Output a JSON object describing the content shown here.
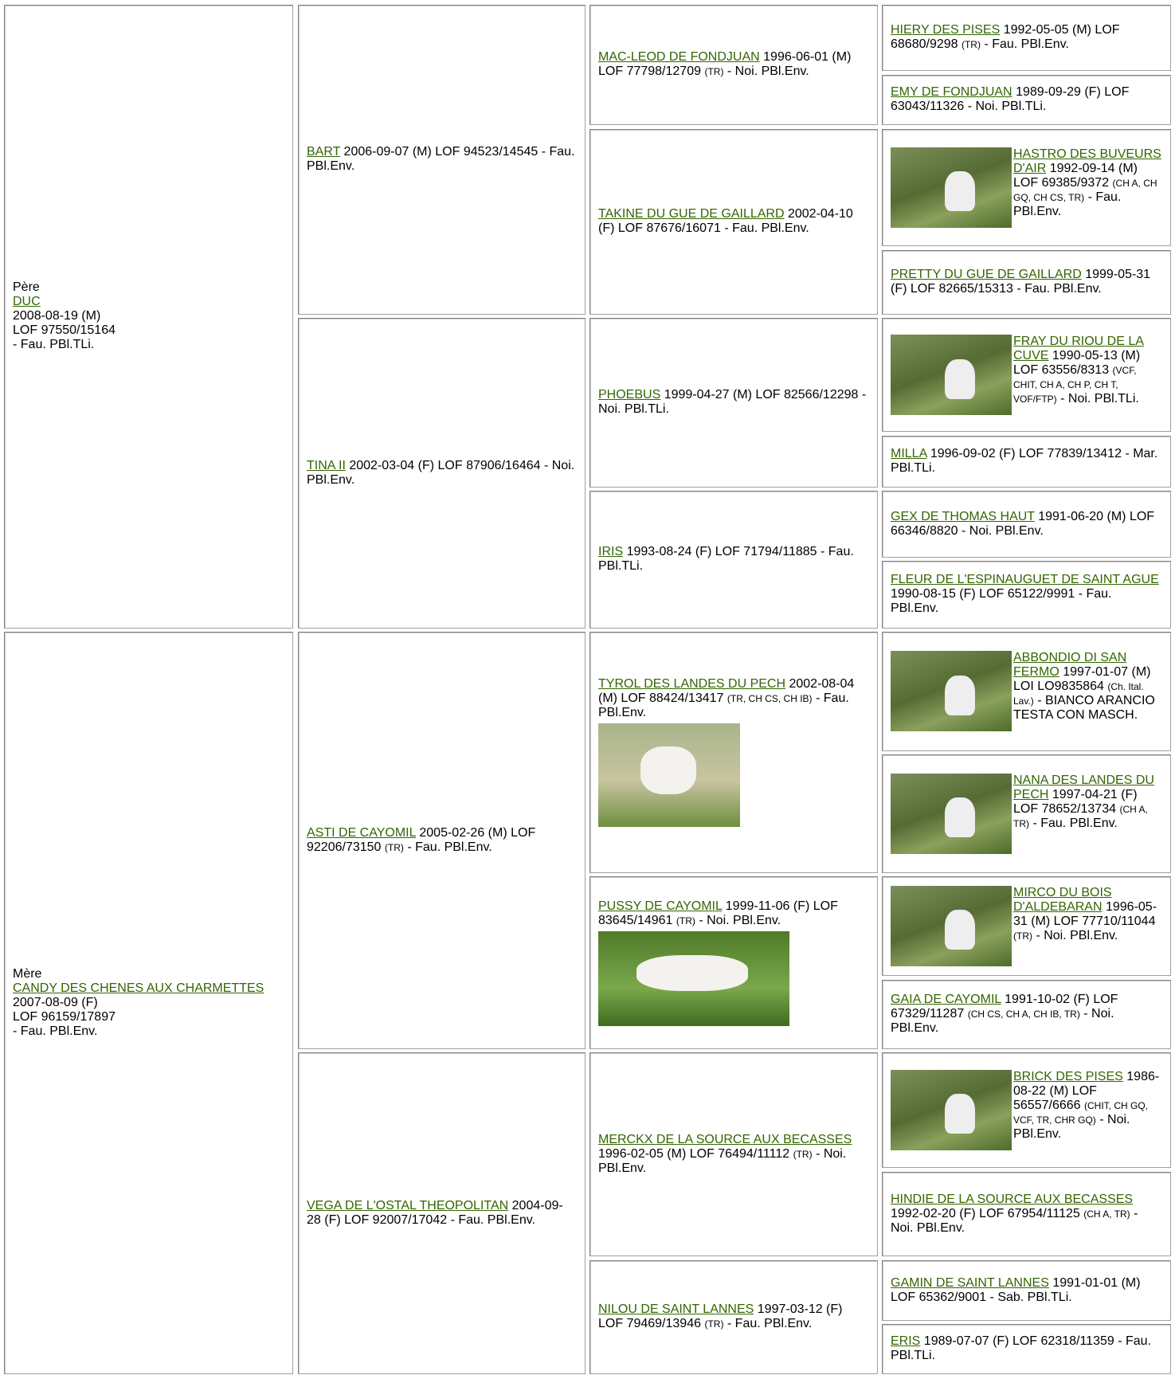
{
  "gen1": [
    {
      "label": "Père",
      "name": "DUC",
      "lines": [
        "2008-08-19 (M)",
        "LOF 97550/15164",
        "- Fau. PBl.TLi."
      ]
    },
    {
      "label": "Mère",
      "name": "CANDY DES CHENES AUX CHARMETTES",
      "lines": [
        "2007-08-09 (F)",
        "LOF 96159/17897",
        "- Fau. PBl.Env."
      ]
    }
  ],
  "gen2": [
    {
      "name": "BART",
      "info": "2006-09-07 (M) LOF 94523/14545",
      "rest": "- Fau. PBl.Env."
    },
    {
      "name": "TINA II",
      "info": "2002-03-04 (F) LOF 87906/16464",
      "rest": "- Noi. PBl.Env."
    },
    {
      "name": "ASTI DE CAYOMIL",
      "info": "2005-02-26 (M) LOF 92206/73150",
      "titles": "(TR)",
      "rest": "- Fau. PBl.Env."
    },
    {
      "name": "VEGA DE L'OSTAL THEOPOLITAN",
      "info": "2004-09-28 (F) LOF 92007/17042",
      "rest": "- Fau. PBl.Env."
    }
  ],
  "gen3": [
    {
      "name": "MAC-LEOD DE FONDJUAN",
      "info": "1996-06-01 (M) LOF 77798/12709",
      "titles": "(TR)",
      "rest": "- Noi. PBl.Env."
    },
    {
      "name": "TAKINE DU GUE DE GAILLARD",
      "info": "2002-04-10 (F) LOF 87676/16071",
      "rest": "- Fau. PBl.Env."
    },
    {
      "name": "PHOEBUS",
      "info": "1999-04-27 (M) LOF 82566/12298",
      "rest": "- Noi. PBl.TLi."
    },
    {
      "name": "IRIS",
      "info": "1993-08-24 (F) LOF 71794/11885",
      "rest": "- Fau. PBl.TLi."
    },
    {
      "name": "TYROL DES LANDES DU PECH",
      "info": "2002-08-04 (M) LOF 88424/13417",
      "titles": "(TR, CH CS, CH IB)",
      "rest": "- Fau. PBl.Env."
    },
    {
      "name": "PUSSY DE CAYOMIL",
      "info": "1999-11-06 (F) LOF 83645/14961",
      "titles": "(TR)",
      "rest": "- Noi. PBl.Env."
    },
    {
      "name": "MERCKX DE LA SOURCE AUX BECASSES",
      "info": "1996-02-05 (M) LOF 76494/11112",
      "titles": "(TR)",
      "rest": "- Noi. PBl.Env."
    },
    {
      "name": "NILOU DE SAINT LANNES",
      "info": "1997-03-12 (F) LOF 79469/13946",
      "titles": "(TR)",
      "rest": "- Fau. PBl.Env."
    }
  ],
  "gen4": [
    {
      "name": "HIERY DES PISES",
      "info": "1992-05-05 (M) LOF 68680/9298",
      "titles": "(TR)",
      "rest": "- Fau. PBl.Env."
    },
    {
      "name": "EMY DE FONDJUAN",
      "info": "1989-09-29 (F) LOF 63043/11326",
      "rest": "- Noi. PBl.TLi."
    },
    {
      "name": "HASTRO DES BUVEURS D'AIR",
      "info": "1992-09-14 (M) LOF 69385/9372",
      "titles": "(CH A, CH GQ, CH CS, TR)",
      "rest": "- Fau. PBl.Env."
    },
    {
      "name": "PRETTY DU GUE DE GAILLARD",
      "info": "1999-05-31 (F) LOF 82665/15313",
      "rest": "- Fau. PBl.Env."
    },
    {
      "name": "FRAY DU RIOU DE LA CUVE",
      "info": "1990-05-13 (M) LOF 63556/8313",
      "titles": "(VCF, CHIT, CH A, CH P, CH T, VOF/FTP)",
      "rest": "- Noi. PBl.TLi."
    },
    {
      "name": "MILLA",
      "info": "1996-09-02 (F) LOF 77839/13412",
      "rest": "- Mar. PBl.TLi."
    },
    {
      "name": "GEX DE THOMAS HAUT",
      "info": "1991-06-20 (M) LOF 66346/8820",
      "rest": "- Noi. PBl.Env."
    },
    {
      "name": "FLEUR DE L'ESPINAUGUET DE SAINT AGUE",
      "info": "1990-08-15 (F) LOF 65122/9991",
      "rest": "- Fau. PBl.Env."
    },
    {
      "name": "ABBONDIO DI SAN FERMO",
      "info": "1997-01-07 (M) LOI LO9835864",
      "titles": "(Ch. Ital. Lav.)",
      "rest": "- BIANCO ARANCIO TESTA CON MASCH."
    },
    {
      "name": "NANA DES LANDES DU PECH",
      "info": "1997-04-21 (F) LOF 78652/13734",
      "titles": "(CH A, TR)",
      "rest": "- Fau. PBl.Env."
    },
    {
      "name": "MIRCO DU BOIS D'ALDEBARAN",
      "info": "1996-05-31 (M) LOF 77710/11044",
      "titles": "(TR)",
      "rest": "- Noi. PBl.Env."
    },
    {
      "name": "GAIA DE CAYOMIL",
      "info": "1991-10-02 (F) LOF 67329/11287",
      "titles": "(CH CS, CH A, CH IB, TR)",
      "rest": "- Noi. PBl.Env."
    },
    {
      "name": "BRICK DES PISES",
      "info": "1986-08-22 (M) LOF 56557/6666",
      "titles": "(CHIT, CH GQ, VCF, TR, CHR GQ)",
      "rest": "- Noi. PBl.Env."
    },
    {
      "name": "HINDIE DE LA SOURCE AUX BECASSES",
      "info": "1992-02-20 (F) LOF 67954/11125",
      "titles": "(CH A, TR)",
      "rest": "- Noi. PBl.Env."
    },
    {
      "name": "GAMIN DE SAINT LANNES",
      "info": "1991-01-01 (M) LOF 65362/9001",
      "rest": "- Sab. PBl.TLi."
    },
    {
      "name": "ERIS",
      "info": "1989-07-07 (F) LOF 62318/11359",
      "rest": "- Fau. PBl.TLi."
    }
  ]
}
